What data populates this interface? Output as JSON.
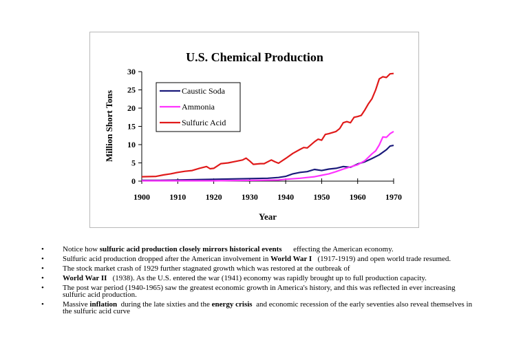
{
  "chart_data": {
    "type": "line",
    "title": "U.S. Chemical Production",
    "xlabel": "Year",
    "ylabel": "Million Short Tons",
    "xlim": [
      1900,
      1970
    ],
    "ylim": [
      0,
      30
    ],
    "xticks": [
      1900,
      1910,
      1920,
      1930,
      1940,
      1950,
      1960,
      1970
    ],
    "yticks": [
      0,
      5,
      10,
      15,
      20,
      25,
      30
    ],
    "grid": false,
    "legend_position": "upper-left",
    "series": [
      {
        "name": "Caustic Soda",
        "color": "#1a1a7a",
        "points": [
          [
            1900,
            0.2
          ],
          [
            1905,
            0.2
          ],
          [
            1910,
            0.3
          ],
          [
            1915,
            0.4
          ],
          [
            1920,
            0.5
          ],
          [
            1925,
            0.6
          ],
          [
            1930,
            0.7
          ],
          [
            1935,
            0.8
          ],
          [
            1938,
            1.0
          ],
          [
            1940,
            1.3
          ],
          [
            1942,
            2.0
          ],
          [
            1944,
            2.4
          ],
          [
            1946,
            2.6
          ],
          [
            1948,
            3.2
          ],
          [
            1950,
            2.9
          ],
          [
            1952,
            3.3
          ],
          [
            1954,
            3.5
          ],
          [
            1956,
            4.0
          ],
          [
            1958,
            3.8
          ],
          [
            1960,
            4.7
          ],
          [
            1962,
            5.3
          ],
          [
            1964,
            6.2
          ],
          [
            1966,
            7.2
          ],
          [
            1968,
            8.6
          ],
          [
            1969,
            9.6
          ],
          [
            1970,
            9.8
          ]
        ]
      },
      {
        "name": "Ammonia",
        "color": "#ff33ff",
        "points": [
          [
            1900,
            0.1
          ],
          [
            1910,
            0.1
          ],
          [
            1920,
            0.1
          ],
          [
            1930,
            0.2
          ],
          [
            1938,
            0.3
          ],
          [
            1940,
            0.5
          ],
          [
            1944,
            0.8
          ],
          [
            1946,
            1.0
          ],
          [
            1948,
            1.2
          ],
          [
            1950,
            1.6
          ],
          [
            1952,
            2.0
          ],
          [
            1954,
            2.6
          ],
          [
            1956,
            3.3
          ],
          [
            1958,
            3.9
          ],
          [
            1960,
            4.5
          ],
          [
            1962,
            5.6
          ],
          [
            1964,
            7.5
          ],
          [
            1965,
            8.3
          ],
          [
            1966,
            9.9
          ],
          [
            1967,
            12.1
          ],
          [
            1968,
            12.0
          ],
          [
            1969,
            13.0
          ],
          [
            1970,
            13.6
          ]
        ]
      },
      {
        "name": "Sulfuric Acid",
        "color": "#e01a1a",
        "points": [
          [
            1900,
            1.2
          ],
          [
            1904,
            1.3
          ],
          [
            1906,
            1.7
          ],
          [
            1908,
            2.0
          ],
          [
            1910,
            2.4
          ],
          [
            1912,
            2.7
          ],
          [
            1914,
            2.9
          ],
          [
            1916,
            3.5
          ],
          [
            1918,
            4.0
          ],
          [
            1919,
            3.4
          ],
          [
            1920,
            3.5
          ],
          [
            1922,
            4.8
          ],
          [
            1924,
            5.0
          ],
          [
            1926,
            5.4
          ],
          [
            1928,
            5.8
          ],
          [
            1929,
            6.3
          ],
          [
            1930,
            5.5
          ],
          [
            1931,
            4.6
          ],
          [
            1933,
            4.8
          ],
          [
            1934,
            4.8
          ],
          [
            1936,
            5.8
          ],
          [
            1937,
            5.3
          ],
          [
            1938,
            4.9
          ],
          [
            1940,
            6.2
          ],
          [
            1942,
            7.6
          ],
          [
            1944,
            8.7
          ],
          [
            1945,
            9.2
          ],
          [
            1946,
            9.1
          ],
          [
            1948,
            10.8
          ],
          [
            1949,
            11.5
          ],
          [
            1950,
            11.2
          ],
          [
            1951,
            12.8
          ],
          [
            1952,
            13.0
          ],
          [
            1954,
            13.6
          ],
          [
            1955,
            14.4
          ],
          [
            1956,
            16.0
          ],
          [
            1957,
            16.3
          ],
          [
            1958,
            16.0
          ],
          [
            1959,
            17.5
          ],
          [
            1960,
            17.7
          ],
          [
            1961,
            18.0
          ],
          [
            1962,
            19.5
          ],
          [
            1963,
            21.2
          ],
          [
            1964,
            22.6
          ],
          [
            1965,
            25.0
          ],
          [
            1966,
            28.0
          ],
          [
            1967,
            28.6
          ],
          [
            1968,
            28.4
          ],
          [
            1969,
            29.4
          ],
          [
            1970,
            29.5
          ]
        ]
      }
    ]
  },
  "bullets": [
    {
      "parts": [
        {
          "text": "Notice how ",
          "bold": false
        },
        {
          "text": "sulfuric acid production closely mirrors historical events",
          "bold": true
        },
        {
          "text": "      effecting the American economy.",
          "bold": false
        }
      ]
    },
    {
      "parts": [
        {
          "text": "Sulfuric acid production dropped after the American involvement in ",
          "bold": false
        },
        {
          "text": "World War I",
          "bold": true
        },
        {
          "text": "   (1917-1919) and open world trade resumed.",
          "bold": false
        }
      ]
    },
    {
      "parts": [
        {
          "text": "The stock market crash of 1929 further stagnated growth which was restored at the outbreak of",
          "bold": false
        }
      ]
    },
    {
      "parts": [
        {
          "text": "World War II",
          "bold": true
        },
        {
          "text": "   (1938). As the U.S. entered the war (1941) economy was rapidly brought up to full production capacity.",
          "bold": false
        }
      ]
    },
    {
      "parts": [
        {
          "text": "The post war period (1940-1965) saw the greatest economic growth in America's history, and this was reflected in ever increasing sulfuric acid production.",
          "bold": false
        }
      ]
    },
    {
      "parts": [
        {
          "text": "Massive ",
          "bold": false
        },
        {
          "text": "inflation",
          "bold": true
        },
        {
          "text": "  during the late sixties and the ",
          "bold": false
        },
        {
          "text": "energy crisis",
          "bold": true
        },
        {
          "text": "  and economic recession of the early seventies also reveal themselves in the sulfuric acid curve",
          "bold": false
        }
      ]
    }
  ],
  "bullet_marker": "•"
}
